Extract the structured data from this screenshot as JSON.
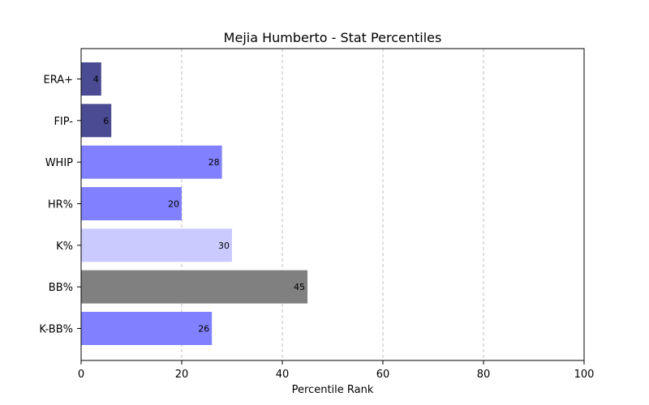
{
  "chart_data": {
    "type": "bar",
    "orientation": "horizontal",
    "title": "Mejia Humberto - Stat Percentiles",
    "xlabel": "Percentile Rank",
    "ylabel": "",
    "xlim": [
      0,
      100
    ],
    "xticks": [
      "0",
      "20",
      "40",
      "60",
      "80",
      "100"
    ],
    "grid": "x-axis dashed",
    "categories": [
      "ERA+",
      "FIP-",
      "WHIP",
      "HR%",
      "K%",
      "BB%",
      "K-BB%"
    ],
    "values": [
      4,
      6,
      28,
      20,
      30,
      45,
      26
    ],
    "bar_labels": [
      "4",
      "6",
      "28",
      "20",
      "30",
      "45",
      "26"
    ],
    "colors": [
      "#4b4b93",
      "#4b4b93",
      "#8181ff",
      "#8181ff",
      "#cacaff",
      "#808080",
      "#8181ff"
    ]
  }
}
